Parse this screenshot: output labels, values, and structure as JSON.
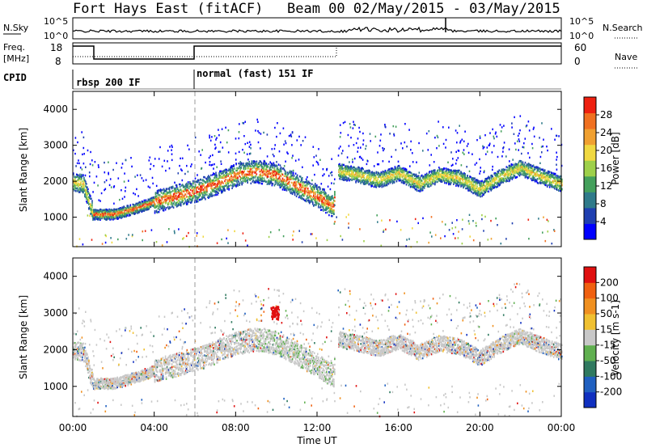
{
  "header": {
    "radar": "Fort Hays East (fitACF)",
    "beam": "Beam 00 02/May/2015 - 03/May/2015"
  },
  "top_panels": {
    "nsky_label": "N.Sky",
    "nsearch_label": "N.Search",
    "nsky_ticks": [
      "10^5",
      "10^0"
    ],
    "nsearch_ticks": [
      "10^5",
      "10^0"
    ],
    "freq_label": "Freq.",
    "freq_unit": "[MHz]",
    "freq_ticks": [
      "18",
      "8"
    ],
    "nave_label": "Nave",
    "nave_ticks": [
      "60",
      "0"
    ],
    "cpid_label": "CPID",
    "cpid_modes": [
      "rbsp 200 IF",
      "normal (fast) 151 IF"
    ]
  },
  "power_colorbar": {
    "label": "Power [dB]",
    "ticks": [
      "28",
      "24",
      "20",
      "16",
      "12",
      "8",
      "4"
    ],
    "colors": [
      "#0000ff",
      "#1f3fb0",
      "#2f7a8a",
      "#44a05c",
      "#9ed04a",
      "#f0d840",
      "#f0a030",
      "#f07020",
      "#ee2010"
    ]
  },
  "velocity_colorbar": {
    "label": "Velocity [m s-1]",
    "ticks": [
      "200",
      "100",
      "50",
      "15",
      "-15",
      "-50",
      "-100",
      "-200"
    ],
    "colors": [
      "#1030c0",
      "#2060c0",
      "#307a60",
      "#60b050",
      "#c8c8c8",
      "#f0c030",
      "#f09020",
      "#f06010",
      "#e01010"
    ]
  },
  "axes": {
    "ylabel": "Slant Range [km]",
    "xlabel": "Time UT",
    "yticks": [
      "4000",
      "3000",
      "2000",
      "1000"
    ],
    "xticks": [
      "00:00",
      "04:00",
      "08:00",
      "12:00",
      "16:00",
      "20:00",
      "00:00"
    ]
  },
  "chart_data": [
    {
      "type": "heatmap",
      "title": "Power",
      "xlabel": "Time UT",
      "ylabel": "Slant Range [km]",
      "xlim": [
        0,
        24
      ],
      "ylim": [
        180,
        4500
      ],
      "colorbar_label": "Power [dB]",
      "colorbar_range": [
        0,
        30
      ],
      "series": [
        {
          "name": "main echo band",
          "x": [
            0,
            0.5,
            1,
            2,
            3,
            4,
            5,
            6,
            7,
            8,
            9,
            10,
            11,
            12,
            12.8,
            13,
            14,
            15,
            16,
            17,
            18,
            19,
            20,
            21,
            22,
            23,
            24
          ],
          "y": [
            2000,
            1950,
            1100,
            1100,
            1250,
            1450,
            1600,
            1750,
            1950,
            2200,
            2300,
            2200,
            1900,
            1600,
            1300,
            2300,
            2200,
            2050,
            2250,
            1950,
            2200,
            2100,
            1800,
            2150,
            2400,
            2150,
            1950
          ]
        }
      ]
    },
    {
      "type": "heatmap",
      "title": "Velocity",
      "xlabel": "Time UT",
      "ylabel": "Slant Range [km]",
      "xlim": [
        0,
        24
      ],
      "ylim": [
        180,
        4500
      ],
      "colorbar_label": "Velocity [m s-1]",
      "colorbar_range": [
        -200,
        200
      ],
      "series": [
        {
          "name": "main echo band",
          "x": [
            0,
            0.5,
            1,
            2,
            3,
            4,
            5,
            6,
            7,
            8,
            9,
            10,
            11,
            12,
            12.8,
            13,
            14,
            15,
            16,
            17,
            18,
            19,
            20,
            21,
            22,
            23,
            24
          ],
          "y": [
            2000,
            1950,
            1100,
            1100,
            1250,
            1450,
            1600,
            1750,
            1950,
            2200,
            2300,
            2200,
            1900,
            1600,
            1300,
            2300,
            2200,
            2050,
            2250,
            1950,
            2200,
            2100,
            1800,
            2150,
            2400,
            2150,
            1950
          ]
        }
      ]
    }
  ]
}
